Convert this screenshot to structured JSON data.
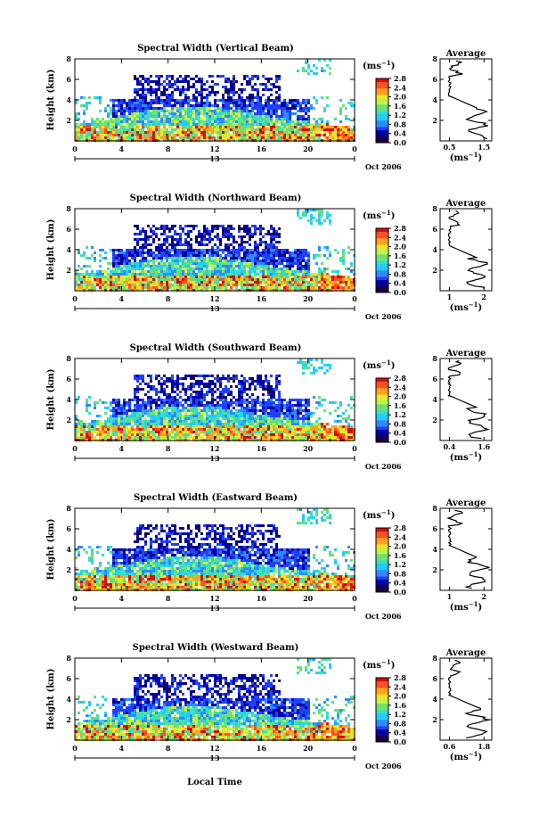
{
  "common": {
    "y_label": "Height (km)",
    "y_ticks": [
      "2",
      "4",
      "6",
      "8"
    ],
    "x_ticks": [
      "0",
      "4",
      "8",
      "12",
      "16",
      "20",
      "0"
    ],
    "date_mid": "13",
    "date_right": "Oct 2006",
    "unit": "(ms",
    "unit_sup": "−1",
    "unit_close": ")",
    "colorbar_ticks": [
      "0.0",
      "0.4",
      "0.8",
      "1.2",
      "1.6",
      "2.0",
      "2.4",
      "2.8"
    ],
    "average_title": "Average",
    "bottom_label": "Local Time"
  },
  "panels": [
    {
      "title": "Spectral Width (Vertical Beam)",
      "avg_ticks": [
        "0.5",
        "1.5"
      ]
    },
    {
      "title": "Spectral Width (Northward Beam)",
      "avg_ticks": [
        "1",
        "2"
      ]
    },
    {
      "title": "Spectral Width (Southward Beam)",
      "avg_ticks": [
        "0.4",
        "1.6"
      ]
    },
    {
      "title": "Spectral Width (Eastward Beam)",
      "avg_ticks": [
        "1",
        "2"
      ]
    },
    {
      "title": "Spectral Width (Westward Beam)",
      "avg_ticks": [
        "0.6",
        "1.8"
      ]
    }
  ],
  "chart_data": {
    "type": "heatmap",
    "x_axis": "Local Time",
    "x_range": [
      0,
      24
    ],
    "y_range": [
      0,
      8
    ],
    "color_range": [
      0.0,
      2.8
    ],
    "colormap": [
      "#1a0040",
      "#0000a0",
      "#2040ff",
      "#2e8bff",
      "#22ccff",
      "#36e0c0",
      "#6ee070",
      "#c8f040",
      "#ffe020",
      "#ffa020",
      "#ff5020",
      "#d01010"
    ]
  }
}
